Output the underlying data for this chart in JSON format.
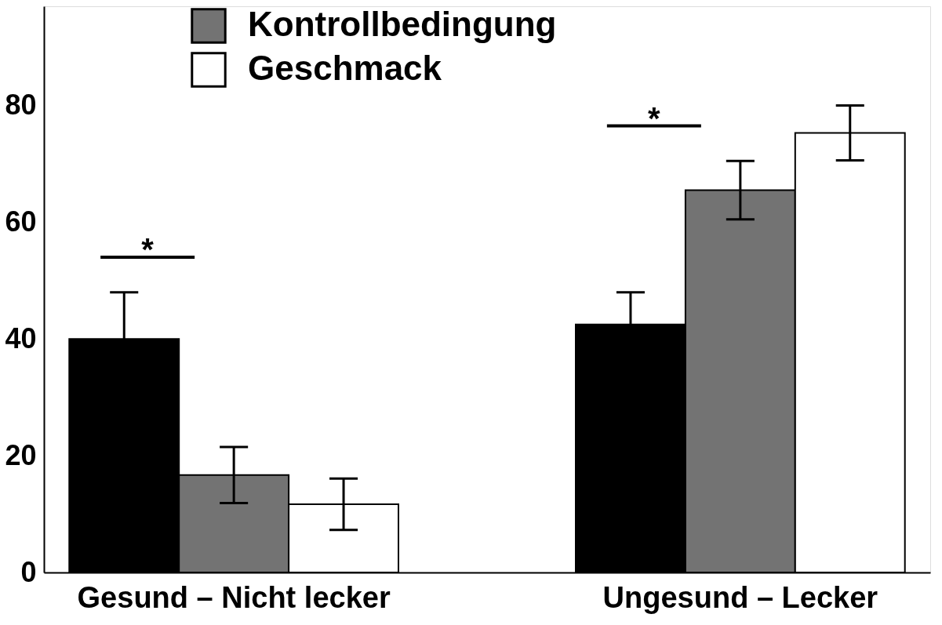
{
  "chart_data": {
    "type": "bar",
    "categories": [
      "Gesund – Nicht lecker",
      "Ungesund – Lecker"
    ],
    "series": [
      {
        "color": "#000000",
        "values": [
          40,
          42.5
        ],
        "errors": [
          8,
          5.5
        ]
      },
      {
        "name": "Kontrollbedingung",
        "color": "#737373",
        "values": [
          16.7,
          65.5
        ],
        "errors": [
          4.8,
          5
        ]
      },
      {
        "name": "Geschmack",
        "color": "#ffffff",
        "values": [
          11.7,
          75.3
        ],
        "errors": [
          4.4,
          4.7
        ]
      }
    ],
    "ylim": [
      0,
      97
    ],
    "yticks": [
      0,
      20,
      40,
      60,
      80
    ],
    "grid": false,
    "legend": "top",
    "annotations": [
      "*",
      "*"
    ]
  }
}
